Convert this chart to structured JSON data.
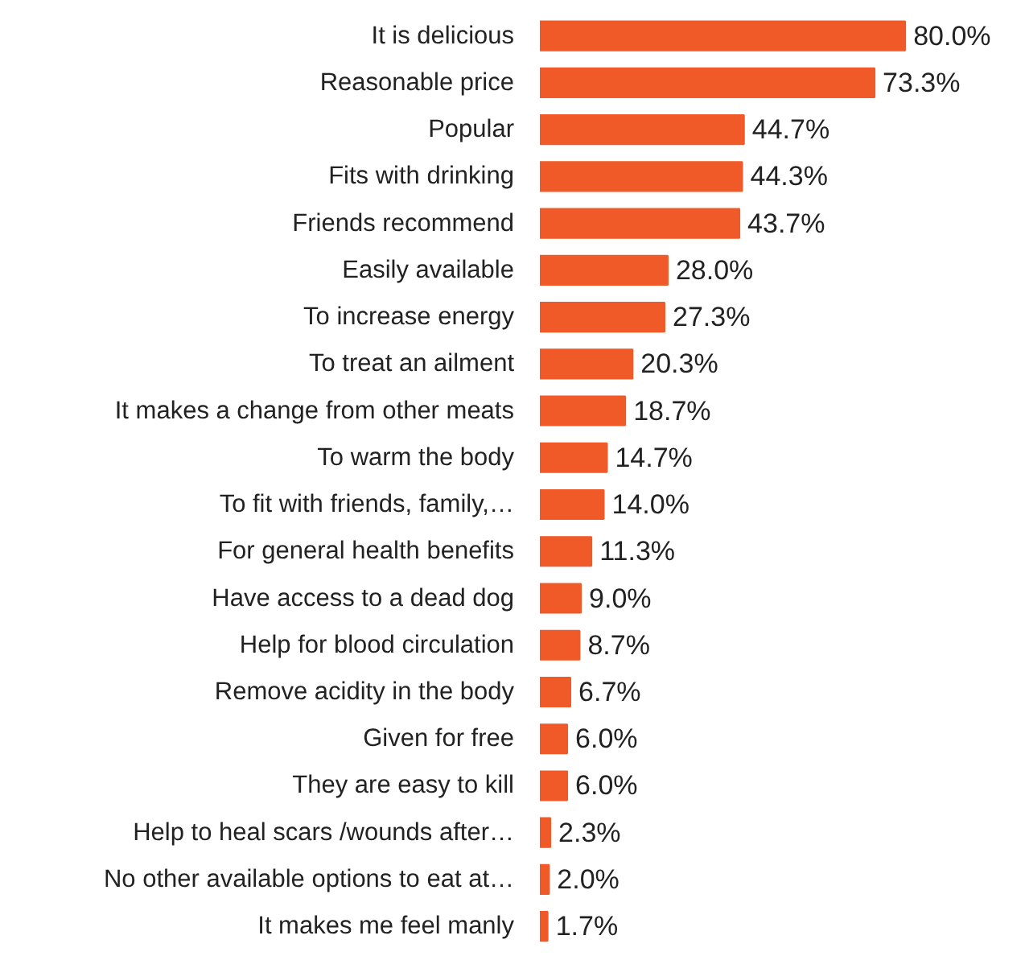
{
  "chart_data": {
    "type": "bar",
    "orientation": "horizontal",
    "color": "#f05a28",
    "categories": [
      "It is delicious",
      "Reasonable price",
      "Popular",
      "Fits with drinking",
      "Friends recommend",
      "Easily available",
      "To increase energy",
      "To treat an ailment",
      "It makes a change from other meats",
      "To warm the body",
      "To fit with friends, family,…",
      "For general health benefits",
      "Have access to a dead dog",
      "Help for blood circulation",
      "Remove acidity in the body",
      "Given for free",
      "They are easy to kill",
      "Help to heal scars /wounds after…",
      "No other available options to eat at…",
      "It makes me feel manly"
    ],
    "values": [
      80.0,
      73.3,
      44.7,
      44.3,
      43.7,
      28.0,
      27.3,
      20.3,
      18.7,
      14.7,
      14.0,
      11.3,
      9.0,
      8.7,
      6.7,
      6.0,
      6.0,
      2.3,
      2.0,
      1.7
    ],
    "value_labels": [
      "80.0%",
      "73.3%",
      "44.7%",
      "44.3%",
      "43.7%",
      "28.0%",
      "27.3%",
      "20.3%",
      "18.7%",
      "14.7%",
      "14.0%",
      "11.3%",
      "9.0%",
      "8.7%",
      "6.7%",
      "6.0%",
      "6.0%",
      "2.3%",
      "2.0%",
      "1.7%"
    ],
    "grid": false
  }
}
